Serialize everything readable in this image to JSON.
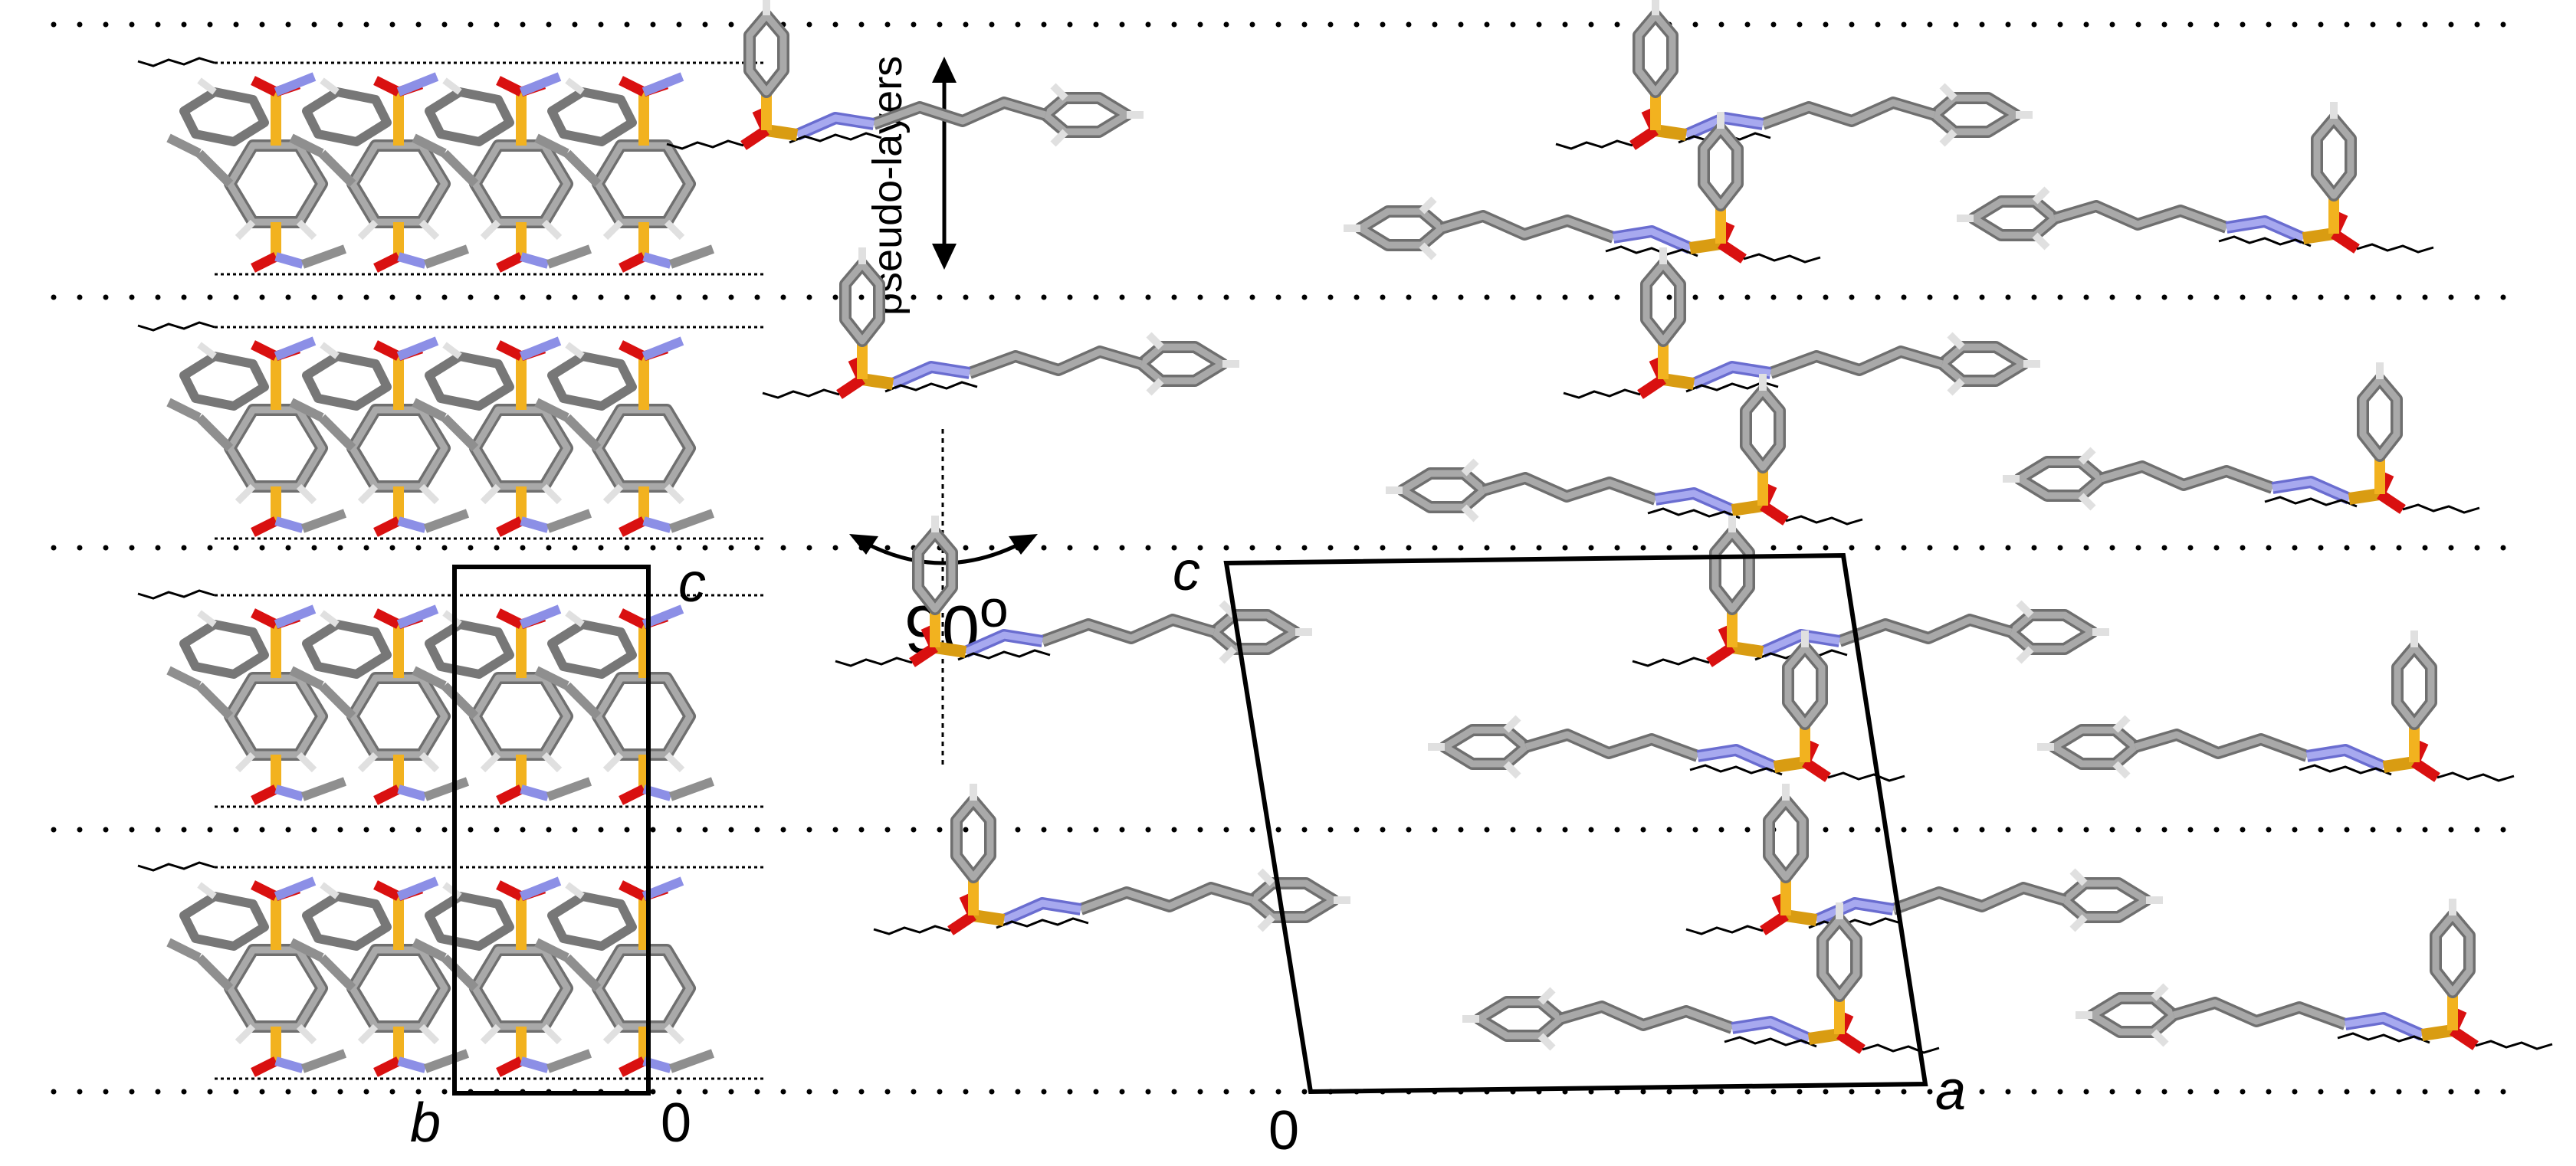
{
  "labels": {
    "pseudo_layers": "pseudo-layers",
    "rotation": "90",
    "rotation_degree_mark": "o",
    "left_cell_c": "c",
    "left_cell_b": "b",
    "left_cell_origin": "0",
    "right_cell_c": "c",
    "right_cell_a": "a",
    "right_cell_origin": "0"
  },
  "colors": {
    "carbon": "#8f8f8f",
    "hydrogen": "#e6e6e6",
    "nitrogen": "#8c8fe6",
    "oxygen": "#e01010",
    "sulfur": "#f2b21f",
    "hbond": "#000000",
    "cell_outline": "#000000"
  },
  "views": {
    "left": "crystal packing viewed along a (b horizontal, c vertical)",
    "right": "crystal packing viewed along b (a horizontal, c vertical)"
  }
}
